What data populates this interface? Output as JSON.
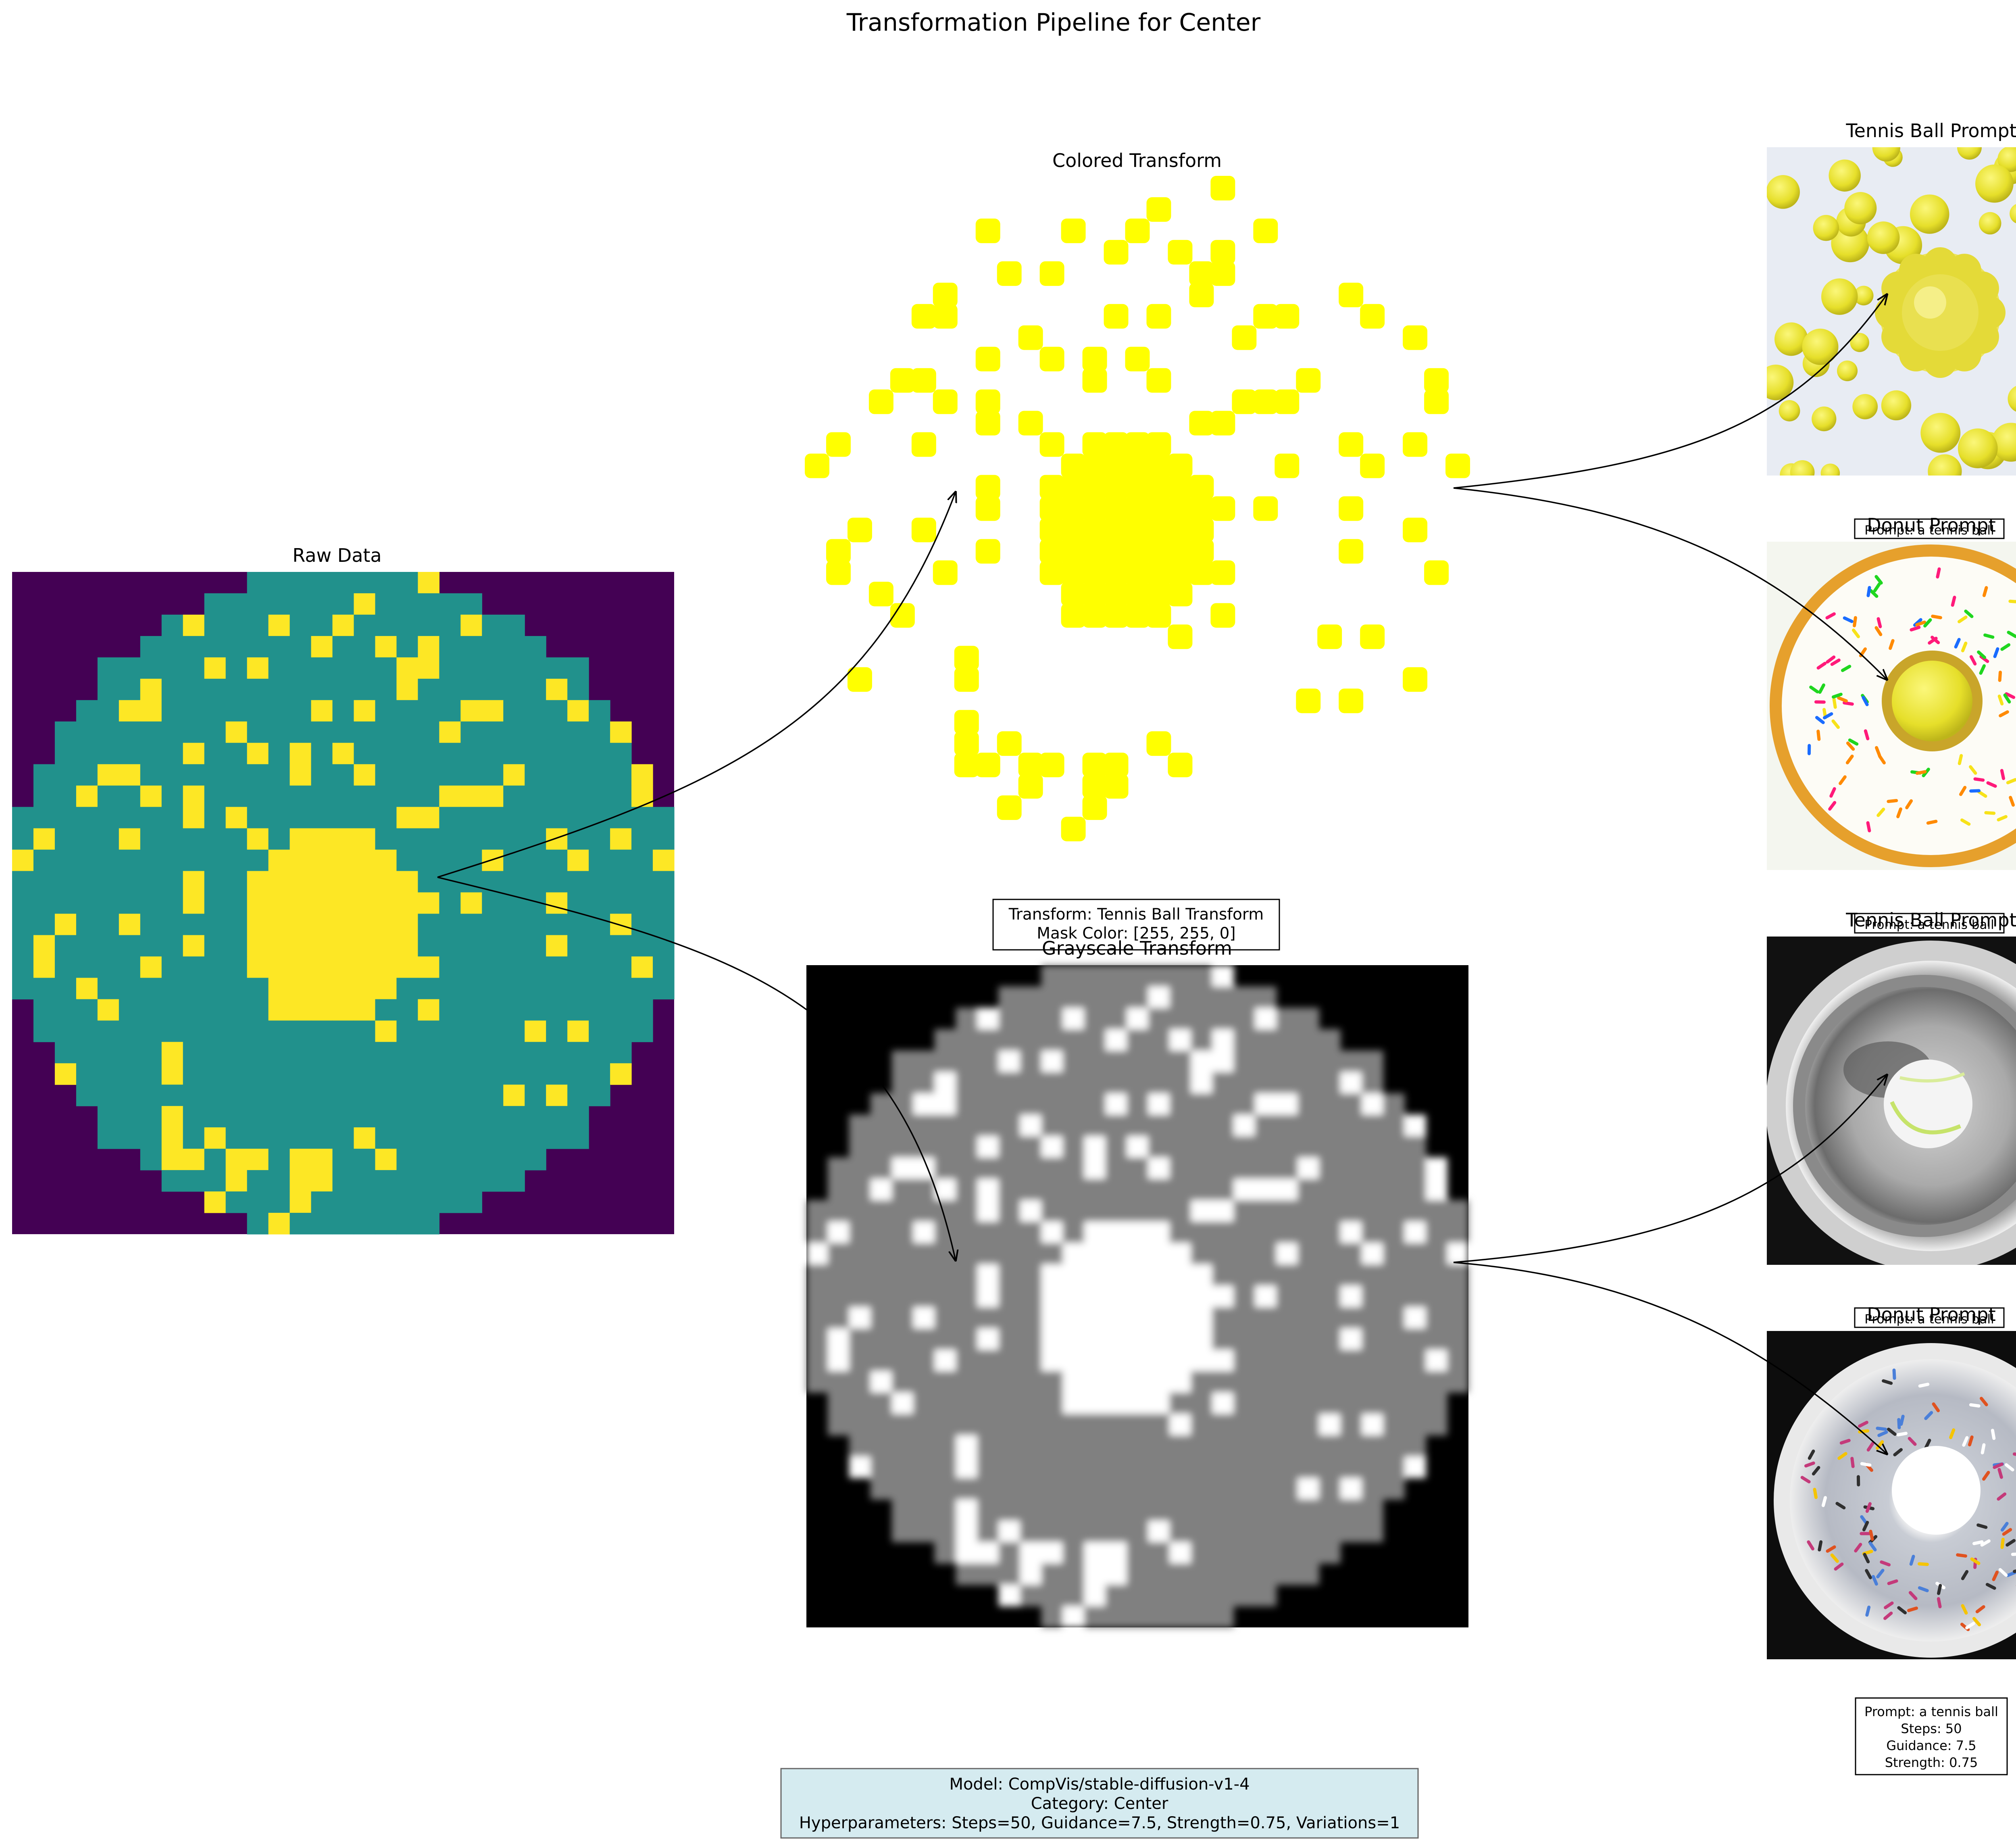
{
  "title": "Transformation Pipeline for Center",
  "panels": {
    "raw": {
      "title": "Raw Data",
      "colors": {
        "background": "#440154",
        "fill": "#21918c",
        "highlight": "#fde725"
      }
    },
    "colored": {
      "title": "Colored Transform",
      "color": "#ffff00"
    },
    "grayscale": {
      "title": "Grayscale Transform",
      "colors": {
        "background": "#000000",
        "fill": "#808080",
        "highlight": "#ffffff"
      }
    }
  },
  "transform_info": {
    "line1": "Transform: Tennis Ball Transform",
    "line2": "Mask Color: [255, 255, 0]"
  },
  "outputs": [
    {
      "title": "Tennis Ball Prompt",
      "subject": "yellow tennis balls on white"
    },
    {
      "title": "Donut Prompt",
      "subject": "frosted donut with yellow ball in hole"
    },
    {
      "title": "Tennis Ball Prompt",
      "subject": "grayscale tennis ball in bowl"
    },
    {
      "title": "Donut Prompt",
      "subject": "grayscale sprinkled donut"
    }
  ],
  "overlap_label": "Prompt: a tennis ball",
  "prompt_info": {
    "prompt": "Prompt: a tennis ball",
    "steps": "Steps: 50",
    "guidance": "Guidance: 7.5",
    "strength": "Strength: 0.75"
  },
  "footer": {
    "model": "Model: CompVis/stable-diffusion-v1-4",
    "category": "Category: Center",
    "hyperparameters": "Hyperparameters: Steps=50, Guidance=7.5, Strength=0.75, Variations=1"
  }
}
